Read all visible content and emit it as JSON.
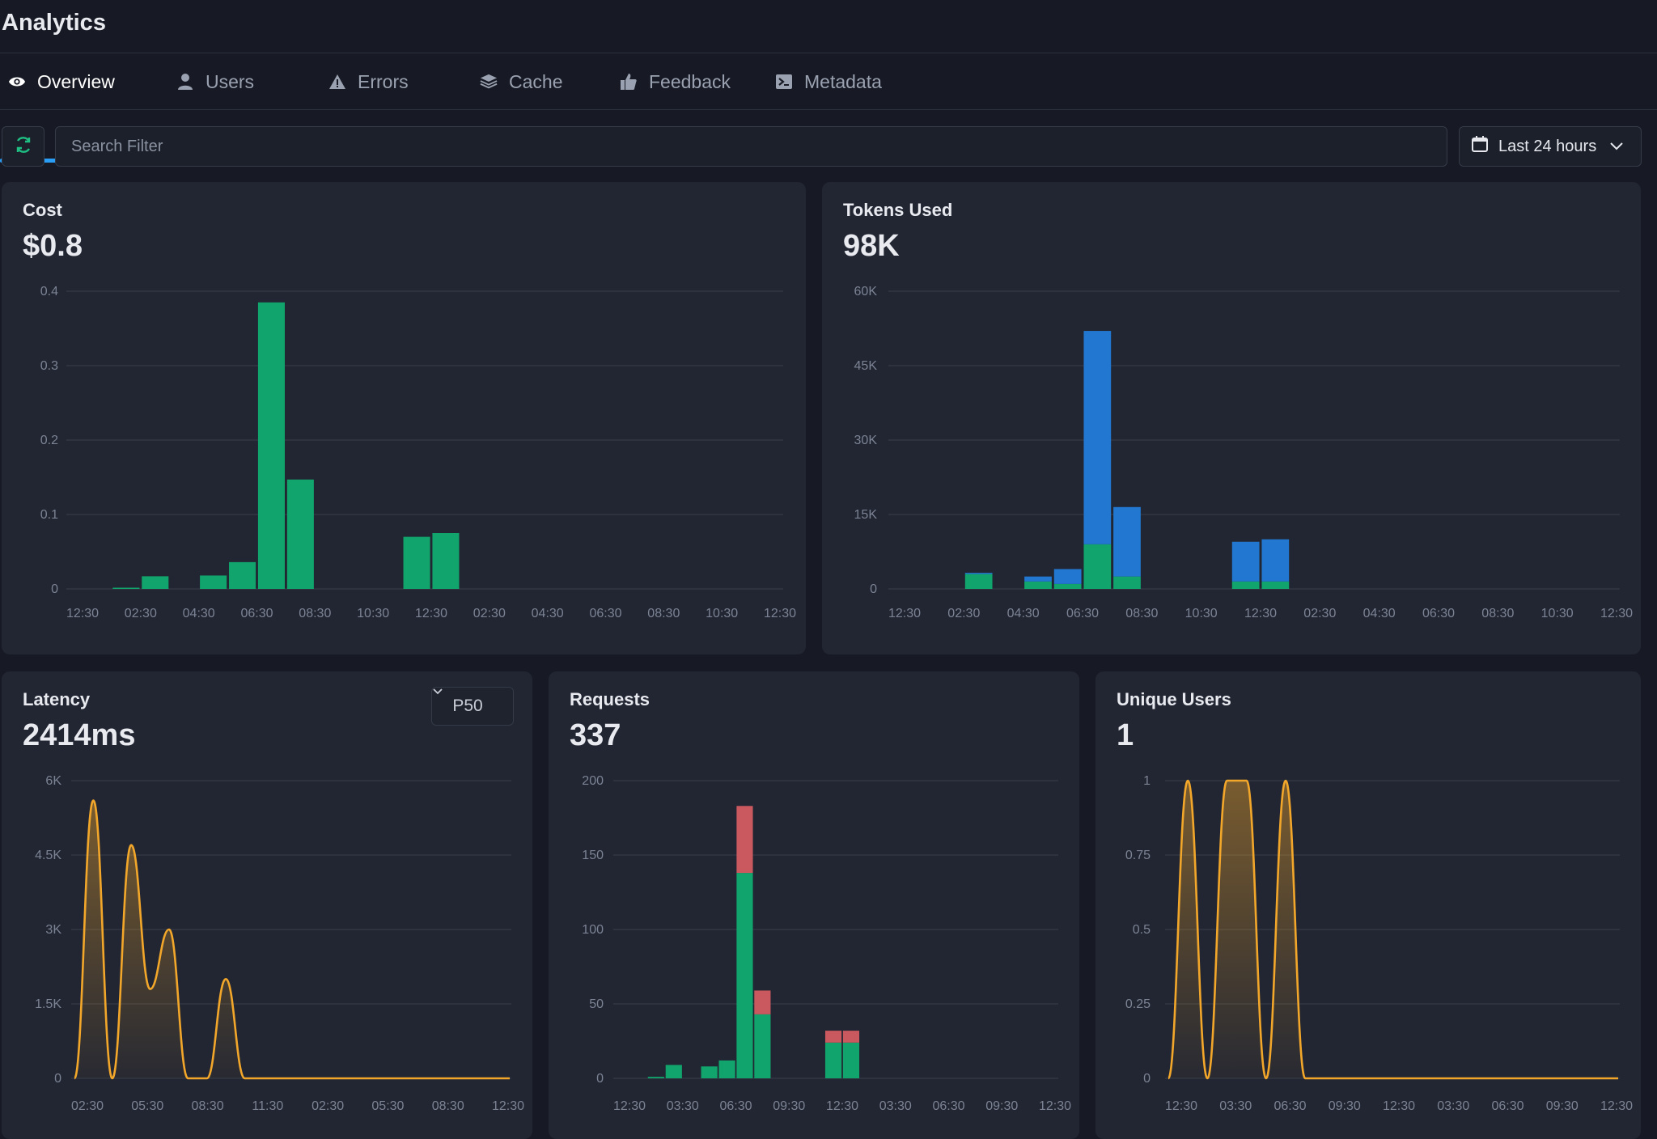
{
  "app": {
    "title": "Analytics"
  },
  "tabs": [
    {
      "label": "Overview",
      "icon": "eye-icon",
      "active": true
    },
    {
      "label": "Users",
      "icon": "user-icon"
    },
    {
      "label": "Errors",
      "icon": "warning-icon"
    },
    {
      "label": "Cache",
      "icon": "layers-icon"
    },
    {
      "label": "Feedback",
      "icon": "thumbs-up-icon"
    },
    {
      "label": "Metadata",
      "icon": "terminal-icon"
    }
  ],
  "toolbar": {
    "search_placeholder": "Search Filter",
    "date_range": "Last 24 hours",
    "refresh_icon": "refresh-icon",
    "calendar_icon": "calendar-icon"
  },
  "colors": {
    "green": "#11a46c",
    "blue": "#2278d0",
    "red": "#c9595f",
    "orange": "#f2a72b",
    "grid": "#3a3f4c"
  },
  "cards": {
    "cost": {
      "title": "Cost",
      "value": "$0.8"
    },
    "tokens": {
      "title": "Tokens Used",
      "value": "98K"
    },
    "latency": {
      "title": "Latency",
      "value": "2414ms",
      "percentile": "P50"
    },
    "requests": {
      "title": "Requests",
      "value": "337"
    },
    "users": {
      "title": "Unique Users",
      "value": "1"
    }
  },
  "chart_data": [
    {
      "id": "cost",
      "type": "bar",
      "title": "Cost",
      "ylim": [
        0,
        0.4
      ],
      "y_ticks": [
        "0",
        "0.1",
        "0.2",
        "0.3",
        "0.4"
      ],
      "x_ticks": [
        "12:30",
        "02:30",
        "04:30",
        "06:30",
        "08:30",
        "10:30",
        "12:30",
        "02:30",
        "04:30",
        "06:30",
        "08:30",
        "10:30",
        "12:30"
      ],
      "grid": true,
      "series": [
        {
          "color": "#11a46c",
          "values": [
            0,
            0.001,
            0.017,
            0,
            0.018,
            0.036,
            0.385,
            0.147,
            0,
            0,
            0,
            0.07,
            0.075,
            0,
            0,
            0,
            0,
            0,
            0,
            0,
            0,
            0,
            0,
            0
          ]
        }
      ]
    },
    {
      "id": "tokens",
      "type": "bar",
      "title": "Tokens Used",
      "ylim": [
        0,
        60000
      ],
      "y_ticks": [
        "0",
        "15K",
        "30K",
        "45K",
        "60K"
      ],
      "x_ticks": [
        "12:30",
        "02:30",
        "04:30",
        "06:30",
        "08:30",
        "10:30",
        "12:30",
        "02:30",
        "04:30",
        "06:30",
        "08:30",
        "10:30",
        "12:30"
      ],
      "grid": true,
      "stacked": true,
      "series": [
        {
          "color": "#11a46c",
          "values": [
            0,
            0,
            3000,
            0,
            1500,
            1000,
            9000,
            2500,
            0,
            0,
            0,
            1500,
            1500,
            0,
            0,
            0,
            0,
            0,
            0,
            0,
            0,
            0,
            0,
            0
          ]
        },
        {
          "color": "#2278d0",
          "values": [
            0,
            0,
            200,
            0,
            1000,
            3000,
            43000,
            14000,
            0,
            0,
            0,
            8000,
            8500,
            0,
            0,
            0,
            0,
            0,
            0,
            0,
            0,
            0,
            0,
            0
          ]
        }
      ]
    },
    {
      "id": "latency",
      "type": "area",
      "title": "Latency",
      "ylim": [
        0,
        6000
      ],
      "y_ticks": [
        "0",
        "1.5K",
        "3K",
        "4.5K",
        "6K"
      ],
      "x_ticks": [
        "02:30",
        "05:30",
        "08:30",
        "11:30",
        "02:30",
        "05:30",
        "08:30",
        "12:30"
      ],
      "grid": true,
      "series": [
        {
          "color": "#f2a72b",
          "values": [
            0,
            5600,
            0,
            4700,
            1800,
            3000,
            0,
            0,
            2000,
            0,
            0,
            0,
            0,
            0,
            0,
            0,
            0,
            0,
            0,
            0,
            0,
            0,
            0,
            0
          ]
        }
      ]
    },
    {
      "id": "requests",
      "type": "bar",
      "title": "Requests",
      "ylim": [
        0,
        200
      ],
      "y_ticks": [
        "0",
        "50",
        "100",
        "150",
        "200"
      ],
      "x_ticks": [
        "12:30",
        "03:30",
        "06:30",
        "09:30",
        "12:30",
        "03:30",
        "06:30",
        "09:30",
        "12:30"
      ],
      "grid": true,
      "stacked": true,
      "series": [
        {
          "color": "#11a46c",
          "values": [
            0,
            1,
            9,
            0,
            8,
            12,
            138,
            43,
            0,
            0,
            0,
            24,
            24,
            0,
            0,
            0,
            0,
            0,
            0,
            0,
            0,
            0,
            0,
            0
          ]
        },
        {
          "color": "#c9595f",
          "values": [
            0,
            0,
            0,
            0,
            0,
            0,
            45,
            16,
            0,
            0,
            0,
            8,
            8,
            0,
            0,
            0,
            0,
            0,
            0,
            0,
            0,
            0,
            0,
            0
          ]
        }
      ]
    },
    {
      "id": "users",
      "type": "area",
      "title": "Unique Users",
      "ylim": [
        0,
        1
      ],
      "y_ticks": [
        "0",
        "0.25",
        "0.5",
        "0.75",
        "1"
      ],
      "x_ticks": [
        "12:30",
        "03:30",
        "06:30",
        "09:30",
        "12:30",
        "03:30",
        "06:30",
        "09:30",
        "12:30"
      ],
      "grid": true,
      "series": [
        {
          "color": "#f2a72b",
          "values": [
            0,
            1,
            0,
            1,
            1,
            0,
            1,
            0,
            0,
            0,
            0,
            0,
            0,
            0,
            0,
            0,
            0,
            0,
            0,
            0,
            0,
            0,
            0,
            0
          ]
        }
      ]
    }
  ]
}
